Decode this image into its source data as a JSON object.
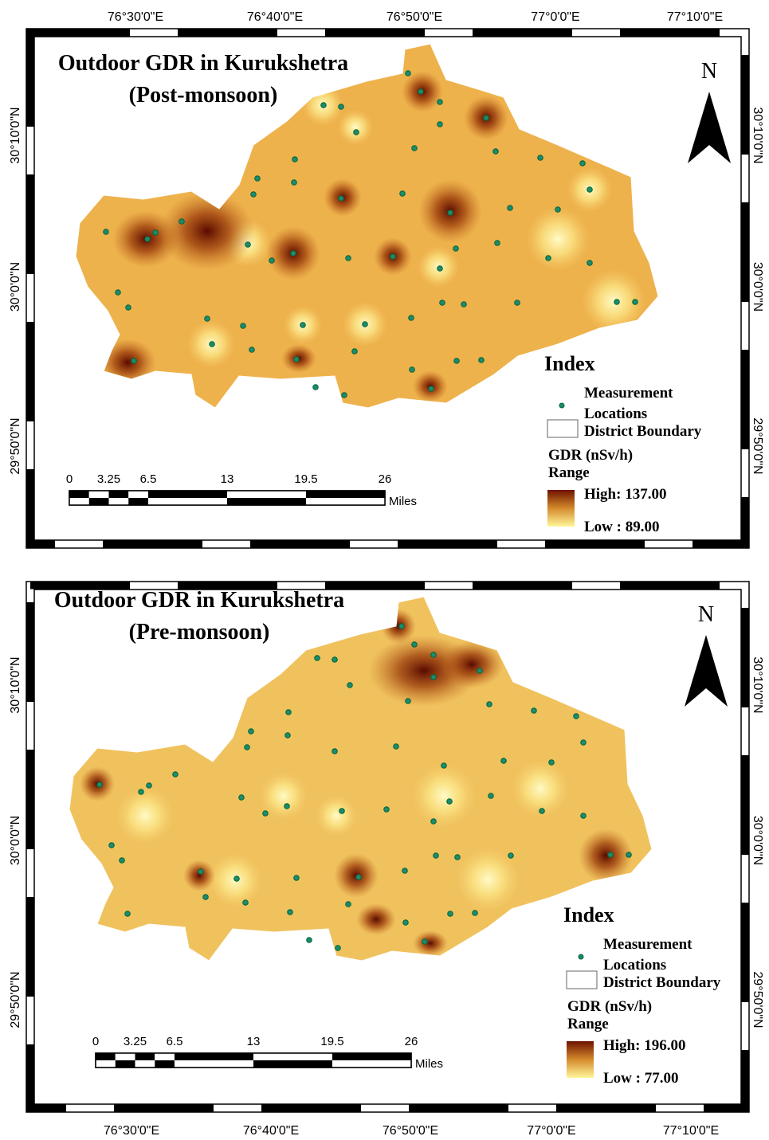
{
  "maps": [
    {
      "title": "Outdoor GDR in Kurukshetra",
      "subtitle": "(Post-monsoon)",
      "north": "N",
      "lon_labels": [
        "76°30'0\"E",
        "76°40'0\"E",
        "76°50'0\"E",
        "77°0'0\"E",
        "77°10'0\"E"
      ],
      "lat_labels": [
        "30°10'0\"N",
        "30°0'0\"N",
        "29°50'0\"N"
      ],
      "scale": {
        "labels": [
          "0",
          "3.25",
          "6.5",
          "13",
          "19.5",
          "26"
        ],
        "unit": "Miles"
      },
      "legend": {
        "title": "Index",
        "points_label": [
          "Measurement",
          "Locations"
        ],
        "boundary_label": "District Boundary",
        "range_title": [
          "GDR (nSv/h)",
          "Range"
        ],
        "high": "High: 137.00",
        "low": "Low : 89.00"
      }
    },
    {
      "title": "Outdoor GDR in Kurukshetra",
      "subtitle": "(Pre-monsoon)",
      "north": "N",
      "lon_labels": [
        "76°30'0\"E",
        "76°40'0\"E",
        "76°50'0\"E",
        "77°0'0\"E",
        "77°10'0\"E"
      ],
      "lat_labels": [
        "30°10'0\"N",
        "30°0'0\"N",
        "29°50'0\"N"
      ],
      "scale": {
        "labels": [
          "0",
          "3.25",
          "6.5",
          "13",
          "19.5",
          "26"
        ],
        "unit": "Miles"
      },
      "legend": {
        "title": "Index",
        "points_label": [
          "Measurement",
          "Locations"
        ],
        "boundary_label": "District Boundary",
        "range_title": [
          "GDR (nSv/h)",
          "Range"
        ],
        "high": "High: 196.00",
        "low": "Low : 77.00"
      }
    }
  ]
}
